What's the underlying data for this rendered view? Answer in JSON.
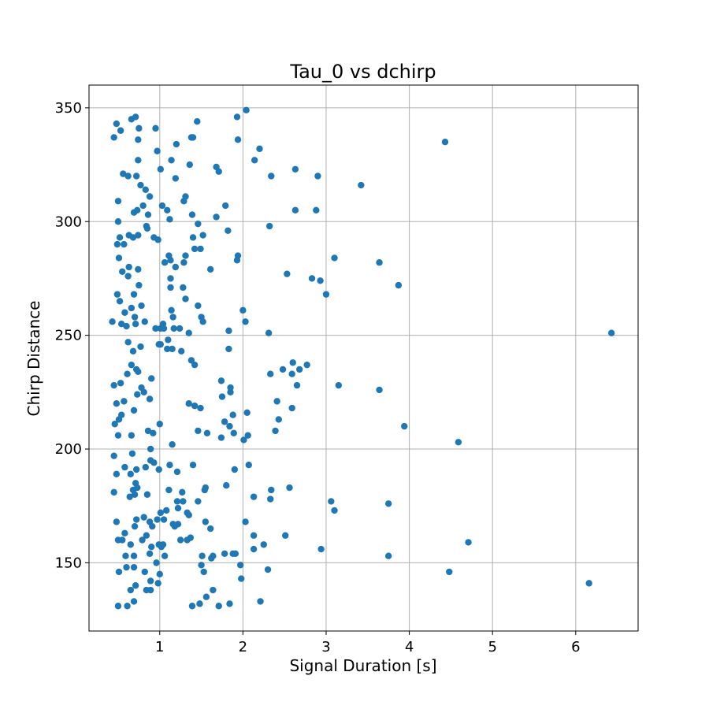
{
  "chart_data": {
    "type": "scatter",
    "title": "Tau_0 vs dchirp",
    "xlabel": "Signal Duration [s]",
    "ylabel": "Chirp Distance",
    "xlim": [
      0.15,
      6.75
    ],
    "ylim": [
      120,
      360
    ],
    "xticks": [
      1,
      2,
      3,
      4,
      5,
      6
    ],
    "yticks": [
      150,
      200,
      250,
      300,
      350
    ],
    "grid": true,
    "marker_color": "#1f77b4",
    "points": [
      [
        0.48,
        343
      ],
      [
        0.66,
        345
      ],
      [
        0.71,
        346
      ],
      [
        0.45,
        337
      ],
      [
        0.75,
        341
      ],
      [
        0.95,
        341
      ],
      [
        0.53,
        340
      ],
      [
        0.74,
        336
      ],
      [
        0.56,
        321
      ],
      [
        0.62,
        320
      ],
      [
        0.72,
        320
      ],
      [
        0.77,
        316
      ],
      [
        0.74,
        327
      ],
      [
        0.97,
        331
      ],
      [
        1.01,
        323
      ],
      [
        0.83,
        314
      ],
      [
        0.88,
        311
      ],
      [
        0.5,
        309
      ],
      [
        0.8,
        307
      ],
      [
        0.69,
        304
      ],
      [
        0.73,
        305
      ],
      [
        0.86,
        303
      ],
      [
        0.5,
        300
      ],
      [
        0.84,
        298
      ],
      [
        0.52,
        293
      ],
      [
        0.63,
        294
      ],
      [
        0.74,
        294
      ],
      [
        0.85,
        297
      ],
      [
        0.93,
        293
      ],
      [
        0.98,
        292
      ],
      [
        0.49,
        290
      ],
      [
        0.57,
        290
      ],
      [
        0.68,
        293
      ],
      [
        0.51,
        284
      ],
      [
        0.63,
        280
      ],
      [
        0.55,
        278
      ],
      [
        0.74,
        279
      ],
      [
        0.62,
        276
      ],
      [
        0.75,
        272
      ],
      [
        0.69,
        268
      ],
      [
        0.49,
        268
      ],
      [
        0.52,
        265
      ],
      [
        0.66,
        262
      ],
      [
        0.78,
        263
      ],
      [
        0.58,
        260
      ],
      [
        0.7,
        258
      ],
      [
        0.43,
        256
      ],
      [
        0.54,
        255
      ],
      [
        0.6,
        254
      ],
      [
        0.71,
        255
      ],
      [
        0.82,
        256
      ],
      [
        0.95,
        253
      ],
      [
        1.01,
        253
      ],
      [
        0.99,
        246
      ],
      [
        0.77,
        245
      ],
      [
        0.62,
        247
      ],
      [
        0.68,
        243
      ],
      [
        0.66,
        237
      ],
      [
        0.72,
        235
      ],
      [
        0.74,
        234
      ],
      [
        0.61,
        233
      ],
      [
        0.9,
        231
      ],
      [
        0.78,
        227
      ],
      [
        0.45,
        228
      ],
      [
        0.53,
        229
      ],
      [
        0.73,
        224
      ],
      [
        0.81,
        225
      ],
      [
        0.88,
        222
      ],
      [
        0.48,
        220
      ],
      [
        0.57,
        221
      ],
      [
        0.69,
        217
      ],
      [
        0.54,
        215
      ],
      [
        0.51,
        213
      ],
      [
        0.46,
        211
      ],
      [
        0.5,
        206
      ],
      [
        0.66,
        206
      ],
      [
        0.86,
        208
      ],
      [
        0.92,
        207
      ],
      [
        1.0,
        211
      ],
      [
        0.89,
        200
      ],
      [
        0.67,
        198
      ],
      [
        0.45,
        197
      ],
      [
        0.89,
        195
      ],
      [
        0.93,
        194
      ],
      [
        0.83,
        192
      ],
      [
        0.99,
        191
      ],
      [
        0.58,
        192
      ],
      [
        0.72,
        191
      ],
      [
        0.48,
        189
      ],
      [
        0.65,
        189
      ],
      [
        0.71,
        185
      ],
      [
        0.68,
        182
      ],
      [
        0.73,
        183
      ],
      [
        0.45,
        181
      ],
      [
        0.64,
        179
      ],
      [
        0.7,
        180
      ],
      [
        0.85,
        180
      ],
      [
        0.91,
        166
      ],
      [
        0.72,
        169
      ],
      [
        0.81,
        170
      ],
      [
        0.88,
        168
      ],
      [
        0.97,
        169
      ],
      [
        0.48,
        168
      ],
      [
        0.7,
        166
      ],
      [
        0.58,
        163
      ],
      [
        0.55,
        160
      ],
      [
        0.5,
        160
      ],
      [
        0.65,
        158
      ],
      [
        0.79,
        160
      ],
      [
        0.84,
        162
      ],
      [
        0.9,
        157
      ],
      [
        0.99,
        158
      ],
      [
        0.59,
        153
      ],
      [
        0.69,
        153
      ],
      [
        0.88,
        154
      ],
      [
        0.6,
        148
      ],
      [
        0.69,
        148
      ],
      [
        0.51,
        146
      ],
      [
        0.82,
        146
      ],
      [
        0.96,
        150
      ],
      [
        1.0,
        145
      ],
      [
        0.89,
        142
      ],
      [
        0.71,
        140
      ],
      [
        0.65,
        138
      ],
      [
        0.84,
        138
      ],
      [
        0.89,
        138
      ],
      [
        0.98,
        141
      ],
      [
        0.69,
        133
      ],
      [
        0.5,
        131
      ],
      [
        0.61,
        131
      ],
      [
        1.45,
        344
      ],
      [
        1.2,
        334
      ],
      [
        1.38,
        337
      ],
      [
        1.4,
        337
      ],
      [
        1.36,
        325
      ],
      [
        1.14,
        327
      ],
      [
        1.19,
        319
      ],
      [
        1.68,
        324
      ],
      [
        1.71,
        322
      ],
      [
        1.31,
        311
      ],
      [
        1.29,
        309
      ],
      [
        1.03,
        307
      ],
      [
        1.09,
        305
      ],
      [
        1.12,
        301
      ],
      [
        1.39,
        303
      ],
      [
        1.46,
        299
      ],
      [
        1.68,
        302
      ],
      [
        1.52,
        294
      ],
      [
        1.4,
        293
      ],
      [
        1.42,
        288
      ],
      [
        1.49,
        288
      ],
      [
        1.31,
        285
      ],
      [
        1.29,
        282
      ],
      [
        1.11,
        285
      ],
      [
        1.13,
        283
      ],
      [
        1.06,
        282
      ],
      [
        1.19,
        280
      ],
      [
        1.13,
        275
      ],
      [
        1.13,
        271
      ],
      [
        1.28,
        271
      ],
      [
        1.31,
        266
      ],
      [
        1.14,
        261
      ],
      [
        1.16,
        258
      ],
      [
        1.04,
        255
      ],
      [
        1.05,
        253
      ],
      [
        1.17,
        253
      ],
      [
        1.24,
        253
      ],
      [
        1.46,
        263
      ],
      [
        1.52,
        256
      ],
      [
        1.5,
        258
      ],
      [
        1.35,
        251
      ],
      [
        1.1,
        248
      ],
      [
        1.09,
        244
      ],
      [
        1.15,
        244
      ],
      [
        1.26,
        243
      ],
      [
        1.01,
        246
      ],
      [
        1.38,
        239
      ],
      [
        1.42,
        237
      ],
      [
        1.35,
        220
      ],
      [
        1.42,
        219
      ],
      [
        1.49,
        218
      ],
      [
        1.46,
        208
      ],
      [
        1.57,
        207
      ],
      [
        1.15,
        202
      ],
      [
        1.12,
        193
      ],
      [
        1.21,
        190
      ],
      [
        1.4,
        193
      ],
      [
        1.55,
        183
      ],
      [
        1.54,
        182
      ],
      [
        1.46,
        177
      ],
      [
        1.21,
        177
      ],
      [
        1.28,
        177
      ],
      [
        1.27,
        181
      ],
      [
        1.22,
        174
      ],
      [
        1.33,
        172
      ],
      [
        1.35,
        171
      ],
      [
        1.11,
        182
      ],
      [
        1.01,
        172
      ],
      [
        1.08,
        173
      ],
      [
        1.05,
        169
      ],
      [
        1.16,
        167
      ],
      [
        1.18,
        166
      ],
      [
        1.22,
        167
      ],
      [
        1.55,
        168
      ],
      [
        1.61,
        165
      ],
      [
        1.04,
        158
      ],
      [
        1.02,
        157
      ],
      [
        1.06,
        153
      ],
      [
        1.25,
        160
      ],
      [
        1.33,
        160
      ],
      [
        1.37,
        161
      ],
      [
        1.51,
        153
      ],
      [
        1.5,
        149
      ],
      [
        1.53,
        146
      ],
      [
        1.62,
        152
      ],
      [
        1.64,
        153
      ],
      [
        1.64,
        138
      ],
      [
        1.56,
        135
      ],
      [
        1.48,
        132
      ],
      [
        1.39,
        131
      ],
      [
        1.71,
        131
      ],
      [
        1.61,
        279
      ],
      [
        1.82,
        296
      ],
      [
        1.79,
        307
      ],
      [
        1.94,
        285
      ],
      [
        1.93,
        283
      ],
      [
        1.74,
        230
      ],
      [
        1.85,
        225
      ],
      [
        1.85,
        227
      ],
      [
        1.83,
        244
      ],
      [
        1.83,
        252
      ],
      [
        1.75,
        223
      ],
      [
        1.78,
        212
      ],
      [
        1.88,
        215
      ],
      [
        1.84,
        210
      ],
      [
        1.89,
        207
      ],
      [
        1.74,
        205
      ],
      [
        1.9,
        191
      ],
      [
        1.8,
        184
      ],
      [
        1.78,
        154
      ],
      [
        1.88,
        154
      ],
      [
        1.91,
        154
      ],
      [
        1.97,
        149
      ],
      [
        1.98,
        143
      ],
      [
        1.84,
        132
      ],
      [
        1.93,
        346
      ],
      [
        1.94,
        336
      ],
      [
        2.04,
        349
      ],
      [
        2.2,
        332
      ],
      [
        2.14,
        327
      ],
      [
        2.34,
        320
      ],
      [
        2.63,
        323
      ],
      [
        2.9,
        320
      ],
      [
        2.63,
        305
      ],
      [
        2.88,
        305
      ],
      [
        2.32,
        298
      ],
      [
        2.53,
        277
      ],
      [
        2.83,
        275
      ],
      [
        2.93,
        274
      ],
      [
        3.0,
        268
      ],
      [
        3.1,
        284
      ],
      [
        3.42,
        316
      ],
      [
        3.64,
        282
      ],
      [
        3.87,
        272
      ],
      [
        2.0,
        261
      ],
      [
        2.03,
        256
      ],
      [
        2.31,
        251
      ],
      [
        2.6,
        238
      ],
      [
        2.48,
        235
      ],
      [
        2.59,
        233
      ],
      [
        2.68,
        235
      ],
      [
        2.77,
        237
      ],
      [
        2.33,
        233
      ],
      [
        2.65,
        228
      ],
      [
        3.15,
        228
      ],
      [
        3.64,
        226
      ],
      [
        2.41,
        221
      ],
      [
        2.59,
        218
      ],
      [
        2.43,
        213
      ],
      [
        2.39,
        208
      ],
      [
        2.05,
        216
      ],
      [
        2.06,
        206
      ],
      [
        2.01,
        204
      ],
      [
        2.07,
        193
      ],
      [
        3.94,
        210
      ],
      [
        4.59,
        203
      ],
      [
        2.34,
        182
      ],
      [
        2.56,
        183
      ],
      [
        2.33,
        178
      ],
      [
        2.13,
        179
      ],
      [
        3.06,
        177
      ],
      [
        3.1,
        173
      ],
      [
        3.75,
        176
      ],
      [
        2.03,
        168
      ],
      [
        2.13,
        162
      ],
      [
        2.25,
        158
      ],
      [
        2.13,
        156
      ],
      [
        2.51,
        162
      ],
      [
        2.94,
        156
      ],
      [
        3.75,
        153
      ],
      [
        2.3,
        147
      ],
      [
        2.21,
        133
      ],
      [
        4.43,
        335
      ],
      [
        4.48,
        146
      ],
      [
        4.71,
        159
      ],
      [
        6.16,
        141
      ],
      [
        6.43,
        251
      ]
    ]
  }
}
